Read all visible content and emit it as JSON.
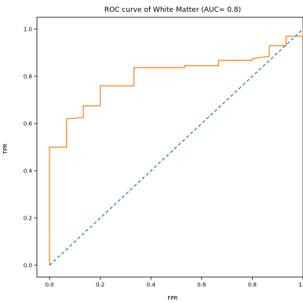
{
  "chart_data": {
    "type": "line",
    "title": "ROC curve of White Matter (AUC= 0.8)",
    "xlabel": "FPR",
    "ylabel": "TPR",
    "xlim": [
      -0.05,
      1.0
    ],
    "ylim": [
      -0.05,
      1.05
    ],
    "x_ticks": [
      0.0,
      0.2,
      0.4,
      0.6,
      0.8,
      1.0
    ],
    "x_tick_labels": [
      "0.0",
      "0.2",
      "0.4",
      "0.6",
      "0.8",
      "1.0"
    ],
    "y_ticks": [
      0.0,
      0.2,
      0.4,
      0.6,
      0.8,
      1.0
    ],
    "y_tick_labels": [
      "0.0",
      "0.2",
      "0.4",
      "0.6",
      "0.8",
      "1.0"
    ],
    "grid": false,
    "series": [
      {
        "style": "step",
        "color": "#ff7f0e",
        "x": [
          0.0,
          0.0,
          0.067,
          0.067,
          0.133,
          0.133,
          0.2,
          0.2,
          0.333,
          0.333,
          0.533,
          0.533,
          0.667,
          0.667,
          0.8,
          0.8,
          0.867,
          0.867,
          0.933,
          0.933,
          1.0,
          1.0
        ],
        "y": [
          0.0,
          0.5,
          0.5,
          0.62,
          0.625,
          0.675,
          0.675,
          0.76,
          0.76,
          0.837,
          0.837,
          0.845,
          0.845,
          0.868,
          0.868,
          0.875,
          0.885,
          0.93,
          0.93,
          0.97,
          0.97,
          1.0
        ]
      },
      {
        "style": "dashed",
        "color": "#1f77b4",
        "x": [
          0.0,
          1.0
        ],
        "y": [
          0.0,
          1.0
        ]
      }
    ]
  }
}
